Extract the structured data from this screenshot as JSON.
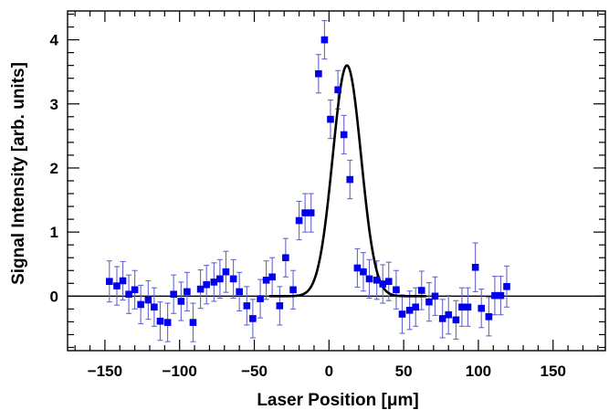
{
  "chart_data": {
    "type": "scatter",
    "title": "",
    "xlabel": "Laser Position [μm]",
    "ylabel": "Signal Intensity [arb. units]",
    "xlim": [
      -175,
      185
    ],
    "ylim": [
      -0.85,
      4.45
    ],
    "xticks": [
      -150,
      -100,
      -50,
      0,
      50,
      100,
      150
    ],
    "yticks": [
      0,
      1,
      2,
      3,
      4
    ],
    "xtick_labels": [
      "−150",
      "−100",
      "−50",
      "0",
      "50",
      "100",
      "150"
    ],
    "ytick_labels": [
      "0",
      "1",
      "2",
      "3",
      "4"
    ],
    "grid": false,
    "legend": "none",
    "colors": {
      "points": "#0000ee",
      "error_bars": "#6666cc",
      "fit": "#000000",
      "baseline": "#000000"
    },
    "series": [
      {
        "kind": "points_with_error_bars",
        "points": [
          {
            "x": -147,
            "y": 0.23,
            "err": 0.32
          },
          {
            "x": -142,
            "y": 0.16,
            "err": 0.3
          },
          {
            "x": -138,
            "y": 0.24,
            "err": 0.3
          },
          {
            "x": -134,
            "y": 0.03,
            "err": 0.3
          },
          {
            "x": -130,
            "y": 0.1,
            "err": 0.3
          },
          {
            "x": -126,
            "y": -0.13,
            "err": 0.3
          },
          {
            "x": -121,
            "y": -0.06,
            "err": 0.3
          },
          {
            "x": -117,
            "y": -0.17,
            "err": 0.3
          },
          {
            "x": -113,
            "y": -0.39,
            "err": 0.3
          },
          {
            "x": -108,
            "y": -0.41,
            "err": 0.3
          },
          {
            "x": -104,
            "y": 0.03,
            "err": 0.3
          },
          {
            "x": -99,
            "y": -0.08,
            "err": 0.3
          },
          {
            "x": -95,
            "y": 0.07,
            "err": 0.3
          },
          {
            "x": -91,
            "y": -0.41,
            "err": 0.3
          },
          {
            "x": -86,
            "y": 0.11,
            "err": 0.3
          },
          {
            "x": -82,
            "y": 0.18,
            "err": 0.3
          },
          {
            "x": -77,
            "y": 0.22,
            "err": 0.3
          },
          {
            "x": -73,
            "y": 0.27,
            "err": 0.3
          },
          {
            "x": -69,
            "y": 0.38,
            "err": 0.32
          },
          {
            "x": -64,
            "y": 0.27,
            "err": 0.3
          },
          {
            "x": -60,
            "y": 0.07,
            "err": 0.3
          },
          {
            "x": -55,
            "y": -0.15,
            "err": 0.3
          },
          {
            "x": -51,
            "y": -0.35,
            "err": 0.3
          },
          {
            "x": -46,
            "y": -0.04,
            "err": 0.3
          },
          {
            "x": -42,
            "y": 0.25,
            "err": 0.3
          },
          {
            "x": -38,
            "y": 0.3,
            "err": 0.3
          },
          {
            "x": -33,
            "y": -0.15,
            "err": 0.3
          },
          {
            "x": -29,
            "y": 0.6,
            "err": 0.3
          },
          {
            "x": -24,
            "y": 0.1,
            "err": 0.3
          },
          {
            "x": -20,
            "y": 1.18,
            "err": 0.3
          },
          {
            "x": -16,
            "y": 1.3,
            "err": 0.3
          },
          {
            "x": -12,
            "y": 1.3,
            "err": 0.3
          },
          {
            "x": -7,
            "y": 3.47,
            "err": 0.3
          },
          {
            "x": -3,
            "y": 4.0,
            "err": 0.3
          },
          {
            "x": 1,
            "y": 2.76,
            "err": 0.3
          },
          {
            "x": 6,
            "y": 3.22,
            "err": 0.3
          },
          {
            "x": 10,
            "y": 2.52,
            "err": 0.3
          },
          {
            "x": 14,
            "y": 1.82,
            "err": 0.3
          },
          {
            "x": 19,
            "y": 0.44,
            "err": 0.3
          },
          {
            "x": 23,
            "y": 0.38,
            "err": 0.3
          },
          {
            "x": 27,
            "y": 0.27,
            "err": 0.3
          },
          {
            "x": 32,
            "y": 0.25,
            "err": 0.3
          },
          {
            "x": 36,
            "y": 0.19,
            "err": 0.3
          },
          {
            "x": 40,
            "y": 0.23,
            "err": 0.3
          },
          {
            "x": 45,
            "y": 0.1,
            "err": 0.3
          },
          {
            "x": 49,
            "y": -0.28,
            "err": 0.3
          },
          {
            "x": 54,
            "y": -0.22,
            "err": 0.3
          },
          {
            "x": 58,
            "y": -0.17,
            "err": 0.3
          },
          {
            "x": 62,
            "y": 0.09,
            "err": 0.3
          },
          {
            "x": 67,
            "y": -0.09,
            "err": 0.3
          },
          {
            "x": 71,
            "y": 0.0,
            "err": 0.3
          },
          {
            "x": 76,
            "y": -0.35,
            "err": 0.3
          },
          {
            "x": 80,
            "y": -0.29,
            "err": 0.3
          },
          {
            "x": 85,
            "y": -0.37,
            "err": 0.3
          },
          {
            "x": 89,
            "y": -0.17,
            "err": 0.3
          },
          {
            "x": 93,
            "y": -0.17,
            "err": 0.3
          },
          {
            "x": 98,
            "y": 0.45,
            "err": 0.38
          },
          {
            "x": 102,
            "y": -0.19,
            "err": 0.3
          },
          {
            "x": 107,
            "y": -0.32,
            "err": 0.3
          },
          {
            "x": 111,
            "y": 0.01,
            "err": 0.3
          },
          {
            "x": 115,
            "y": 0.01,
            "err": 0.3
          },
          {
            "x": 119,
            "y": 0.15,
            "err": 0.32
          }
        ]
      },
      {
        "kind": "fit_curve",
        "function": "gaussian",
        "amplitude": 3.6,
        "mean": 12,
        "sigma": 9.5,
        "baseline": 0
      }
    ]
  }
}
